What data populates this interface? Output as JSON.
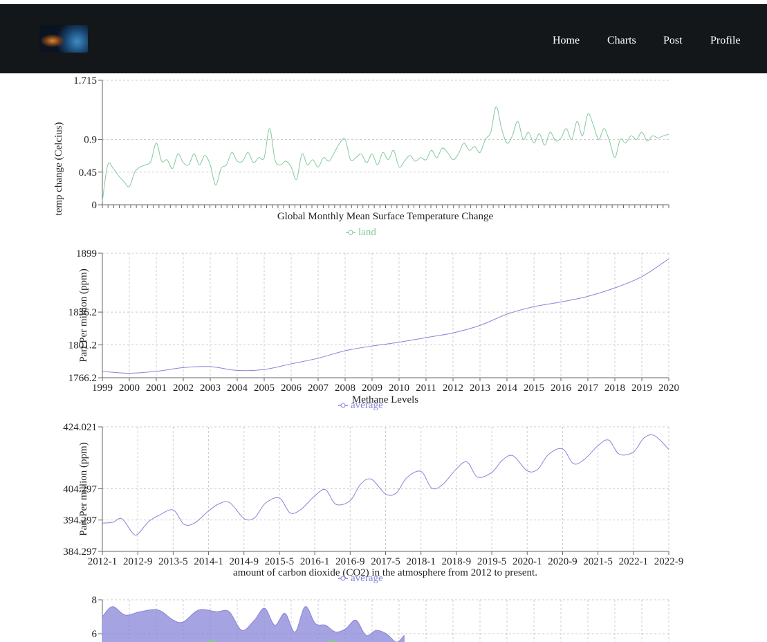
{
  "navbar": {
    "logo_icon": "earth-from-space-icon",
    "links": [
      "Home",
      "Charts",
      "Post",
      "Profile"
    ],
    "background": "#141719"
  },
  "colors": {
    "green": "#82ca9d",
    "purple": "#8884d8",
    "grid": "#cccccc"
  },
  "chart_data": [
    {
      "type": "line",
      "title": "Global Monthly Mean Surface Temperature Change",
      "xlabel": "",
      "ylabel": "temp change (Celcius)",
      "y_ticks": [
        "0",
        "0.45",
        "0.9",
        "1.715"
      ],
      "ylim": [
        0,
        1.715
      ],
      "x_range": [
        1999,
        2020
      ],
      "x_tick_labels_visible": false,
      "grid": "horizontal dashed",
      "legend": "bottom-center",
      "series": [
        {
          "name": "land",
          "color": "#82ca9d",
          "x": [
            1999.0,
            1999.2,
            1999.4,
            1999.6,
            1999.8,
            2000.0,
            2000.2,
            2000.4,
            2000.6,
            2000.8,
            2001.0,
            2001.2,
            2001.4,
            2001.6,
            2001.8,
            2002.0,
            2002.2,
            2002.4,
            2002.6,
            2002.8,
            2003.0,
            2003.2,
            2003.4,
            2003.6,
            2003.8,
            2004.0,
            2004.2,
            2004.4,
            2004.6,
            2004.8,
            2005.0,
            2005.2,
            2005.4,
            2005.6,
            2005.8,
            2006.0,
            2006.2,
            2006.4,
            2006.6,
            2006.8,
            2007.0,
            2007.2,
            2007.4,
            2007.6,
            2007.8,
            2008.0,
            2008.2,
            2008.4,
            2008.6,
            2008.8,
            2009.0,
            2009.2,
            2009.4,
            2009.6,
            2009.8,
            2010.0,
            2010.2,
            2010.4,
            2010.6,
            2010.8,
            2011.0,
            2011.2,
            2011.4,
            2011.6,
            2011.8,
            2012.0,
            2012.2,
            2012.4,
            2012.6,
            2012.8,
            2013.0,
            2013.2,
            2013.4,
            2013.6,
            2013.8,
            2014.0,
            2014.2,
            2014.4,
            2014.6,
            2014.8,
            2015.0,
            2015.2,
            2015.4,
            2015.6,
            2015.8,
            2016.0,
            2016.2,
            2016.4,
            2016.6,
            2016.8,
            2017.0,
            2017.2,
            2017.4,
            2017.6,
            2017.8,
            2018.0,
            2018.2,
            2018.4,
            2018.6,
            2018.8,
            2019.0,
            2019.2,
            2019.4,
            2019.6,
            2019.8,
            2020.0
          ],
          "values": [
            0.05,
            0.55,
            0.5,
            0.4,
            0.32,
            0.25,
            0.45,
            0.52,
            0.55,
            0.6,
            0.85,
            0.6,
            0.62,
            0.5,
            0.7,
            0.58,
            0.55,
            0.7,
            0.55,
            0.68,
            0.55,
            0.27,
            0.5,
            0.55,
            0.72,
            0.6,
            0.6,
            0.72,
            0.58,
            0.65,
            0.65,
            1.05,
            0.62,
            0.55,
            0.6,
            0.52,
            0.35,
            0.7,
            0.55,
            0.62,
            0.52,
            0.65,
            0.6,
            0.72,
            0.85,
            0.9,
            0.62,
            0.65,
            0.7,
            0.58,
            0.7,
            0.55,
            0.72,
            0.62,
            0.75,
            0.52,
            0.6,
            0.68,
            0.6,
            0.65,
            0.62,
            0.75,
            0.65,
            0.78,
            0.72,
            0.62,
            0.7,
            0.85,
            0.75,
            0.8,
            0.72,
            0.9,
            1.0,
            1.35,
            1.05,
            0.85,
            0.95,
            1.15,
            0.9,
            1.0,
            0.85,
            0.98,
            0.82,
            1.0,
            0.88,
            0.92,
            1.05,
            0.9,
            1.15,
            0.95,
            1.25,
            1.1,
            0.9,
            1.05,
            0.88,
            0.65,
            0.9,
            0.85,
            0.95,
            0.9,
            1.0,
            0.88,
            0.95,
            0.92,
            0.95,
            0.97
          ]
        }
      ]
    },
    {
      "type": "line",
      "title": "Methane Levels",
      "xlabel": "",
      "ylabel": "Part Per million (ppm)",
      "y_ticks": [
        "1766.2",
        "1801.2",
        "1836.2",
        "1899"
      ],
      "ylim": [
        1766.2,
        1899
      ],
      "categories": [
        "1999",
        "2000",
        "2001",
        "2002",
        "2003",
        "2004",
        "2005",
        "2006",
        "2007",
        "2008",
        "2009",
        "2010",
        "2011",
        "2012",
        "2013",
        "2014",
        "2015",
        "2016",
        "2017",
        "2018",
        "2019",
        "2020"
      ],
      "grid": "dashed",
      "legend": "bottom-center",
      "series": [
        {
          "name": "average",
          "color": "#8884d8",
          "values": [
            1773,
            1771,
            1773,
            1777,
            1778,
            1774,
            1775,
            1781,
            1787,
            1795,
            1800,
            1804,
            1809,
            1814,
            1822,
            1834,
            1842,
            1847,
            1853,
            1862,
            1874,
            1893
          ]
        }
      ]
    },
    {
      "type": "line",
      "title": "amount of carbon dioxide (CO2) in the atmosphere from 2012 to present.",
      "xlabel": "",
      "ylabel": "Part Per million (ppm)",
      "y_ticks": [
        "384.297",
        "394.297",
        "404.297",
        "424.021"
      ],
      "ylim": [
        384.297,
        424.021
      ],
      "x_tick_labels": [
        "2012-1",
        "2012-9",
        "2013-5",
        "2014-1",
        "2014-9",
        "2015-5",
        "2016-1",
        "2016-9",
        "2017-5",
        "2018-1",
        "2018-9",
        "2019-5",
        "2020-1",
        "2020-9",
        "2021-5",
        "2022-1",
        "2022-9"
      ],
      "grid": "dashed",
      "legend": "bottom-center",
      "series": [
        {
          "name": "average",
          "color": "#8884d8",
          "x": [
            0,
            0.3,
            0.55,
            0.85,
            1.0,
            1.3,
            1.6,
            2.0,
            2.3,
            2.6,
            3.0,
            3.3,
            3.6,
            4.0,
            4.3,
            4.6,
            5.0,
            5.3,
            5.6,
            6.0,
            6.3,
            6.6,
            7.0,
            7.3,
            7.6,
            8.0,
            8.3,
            8.6,
            9.0,
            9.3,
            9.6,
            10.0,
            10.3,
            10.6,
            11.0,
            11.3,
            11.6,
            12.0,
            12.3,
            12.6,
            13.0,
            13.3,
            13.6,
            14.0,
            14.3,
            14.6,
            15.0,
            15.3,
            15.6,
            16.0
          ],
          "values": [
            393.3,
            393.6,
            394.7,
            390.2,
            389.8,
            393.7,
            395.8,
            397.5,
            393.0,
            393.3,
            397.2,
            399.5,
            399.8,
            394.8,
            395.0,
            399.6,
            401.3,
            396.6,
            397.6,
            402.0,
            404.0,
            399.3,
            400.5,
            405.8,
            407.3,
            402.6,
            402.9,
            407.8,
            409.8,
            404.5,
            405.5,
            410.6,
            412.8,
            408.0,
            409.5,
            413.4,
            414.8,
            410.0,
            410.5,
            415.2,
            417.0,
            412.3,
            413.5,
            418.0,
            419.8,
            415.3,
            416.0,
            420.5,
            421.2,
            416.8
          ]
        }
      ]
    },
    {
      "type": "area",
      "title": "",
      "y_ticks": [
        "6",
        "8"
      ],
      "ylim": [
        4,
        8
      ],
      "grid": "dashed",
      "series": [
        {
          "name": "",
          "color": "#8884d8",
          "x": [
            0,
            0.4,
            0.9,
            1.5,
            2.2,
            2.8,
            3.2,
            3.8,
            4.5,
            5.0,
            5.5,
            6.0,
            6.4,
            6.8,
            7.2,
            7.6,
            8.0,
            8.4,
            8.8,
            9.2,
            9.6,
            10.0,
            10.4,
            10.8,
            11.2,
            11.6,
            11.9
          ],
          "values": [
            7.0,
            7.6,
            7.1,
            7.3,
            7.4,
            6.8,
            6.7,
            7.4,
            7.3,
            7.3,
            6.2,
            6.8,
            7.5,
            6.5,
            7.2,
            6.1,
            7.6,
            6.6,
            6.5,
            6.1,
            6.3,
            6.8,
            5.9,
            6.2,
            6.0,
            5.5,
            5.9
          ]
        }
      ]
    }
  ]
}
